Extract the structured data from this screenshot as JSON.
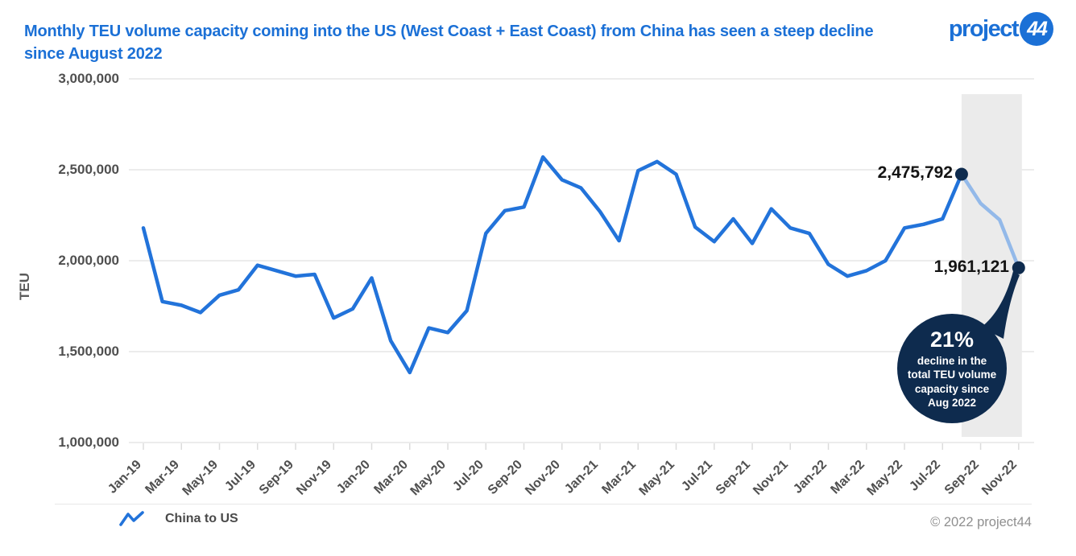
{
  "header": {
    "title_line1": "Monthly TEU volume capacity coming into the US (West Coast + East Coast) from China has seen a steep decline",
    "title_line2": "since August 2022",
    "logo_word": "project",
    "logo_badge": "44"
  },
  "chart_data": {
    "type": "line",
    "title": "Monthly TEU volume capacity coming into the US (West Coast + East Coast) from China has seen a steep decline since August 2022",
    "xlabel": "",
    "ylabel": "TEU",
    "ylim": [
      1000000,
      3000000
    ],
    "grid": true,
    "legend_position": "bottom-left",
    "yticks": [
      3000000,
      2500000,
      2000000,
      1500000,
      1000000
    ],
    "ytick_labels": [
      "3,000,000",
      "2,500,000",
      "2,000,000",
      "1,500,000",
      "1,000,000"
    ],
    "x": [
      "Jan-19",
      "Feb-19",
      "Mar-19",
      "Apr-19",
      "May-19",
      "Jun-19",
      "Jul-19",
      "Aug-19",
      "Sep-19",
      "Oct-19",
      "Nov-19",
      "Dec-19",
      "Jan-20",
      "Feb-20",
      "Mar-20",
      "Apr-20",
      "May-20",
      "Jun-20",
      "Jul-20",
      "Aug-20",
      "Sep-20",
      "Oct-20",
      "Nov-20",
      "Dec-20",
      "Jan-21",
      "Feb-21",
      "Mar-21",
      "Apr-21",
      "May-21",
      "Jun-21",
      "Jul-21",
      "Aug-21",
      "Sep-21",
      "Oct-21",
      "Nov-21",
      "Dec-21",
      "Jan-22",
      "Feb-22",
      "Mar-22",
      "Apr-22",
      "May-22",
      "Jun-22",
      "Jul-22",
      "Aug-22",
      "Sep-22",
      "Oct-22",
      "Nov-22"
    ],
    "xtick_labels": [
      "Jan-19",
      "Mar-19",
      "May-19",
      "Jul-19",
      "Sep-19",
      "Nov-19",
      "Jan-20",
      "Mar-20",
      "May-20",
      "Jul-20",
      "Sep-20",
      "Nov-20",
      "Jan-21",
      "Mar-21",
      "May-21",
      "Jul-21",
      "Sep-21",
      "Nov-21",
      "Jan-22",
      "Mar-22",
      "May-22",
      "Jul-22",
      "Sep-22",
      "Nov-22"
    ],
    "series": [
      {
        "name": "China to US",
        "color": "#2273da",
        "values": [
          2180000,
          1775000,
          1755000,
          1715000,
          1810000,
          1840000,
          1975000,
          1945000,
          1915000,
          1925000,
          1685000,
          1735000,
          1905000,
          1560000,
          1385000,
          1630000,
          1605000,
          1725000,
          2150000,
          2275000,
          2295000,
          2570000,
          2445000,
          2400000,
          2270000,
          2110000,
          2495000,
          2545000,
          2475000,
          2185000,
          2105000,
          2230000,
          2095000,
          2285000,
          2180000,
          2150000,
          1980000,
          1915000,
          1945000,
          2000000,
          2180000,
          2200000,
          2230000,
          2475792,
          2315000,
          2225000,
          1961121
        ]
      }
    ],
    "highlight": {
      "start_label": "Aug-22",
      "start_index": 43,
      "line_color": "#93b9e9",
      "band_color": "#ebebeb",
      "marker_color": "#0e2b4e"
    }
  },
  "annotations": {
    "peak_value_label": "2,475,792",
    "end_value_label": "1,961,121",
    "bubble_headline": "21%",
    "bubble_body": "decline in the total TEU volume capacity since Aug 2022",
    "bubble_color": "#0e2b4e"
  },
  "legend": {
    "item_label": "China to US"
  },
  "footer": {
    "copyright": "© 2022 project44"
  },
  "colors": {
    "title_blue": "#1b70d6",
    "line_blue": "#2273da",
    "highlight_blue": "#93b9e9",
    "navy": "#0e2b4e",
    "grid": "#ececec",
    "band": "#ebebeb"
  }
}
